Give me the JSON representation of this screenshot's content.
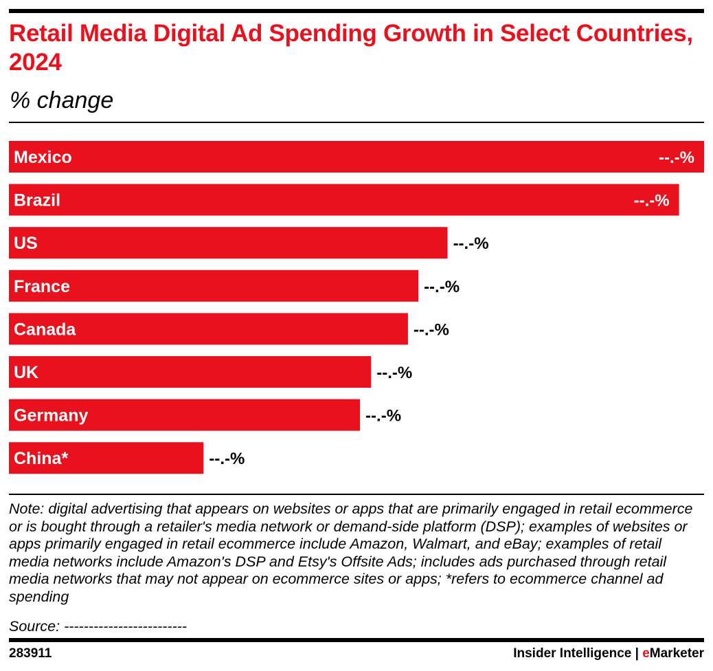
{
  "header": {
    "title": "Retail Media Digital Ad Spending Growth in Select Countries, 2024",
    "subtitle": "% change"
  },
  "chart_data": {
    "type": "bar",
    "orientation": "horizontal",
    "title": "Retail Media Digital Ad Spending Growth in Select Countries, 2024",
    "subtitle": "% change",
    "xlabel": "",
    "ylabel": "",
    "grid": false,
    "categories": [
      "Mexico",
      "Brazil",
      "US",
      "France",
      "Canada",
      "UK",
      "Germany",
      "China*"
    ],
    "value_labels": [
      "--.-%",
      "--.-%",
      "--.-%",
      "--.-%",
      "--.-%",
      "--.-%",
      "--.-%",
      "--.-%"
    ],
    "relative_values": [
      1.0,
      0.964,
      0.631,
      0.589,
      0.574,
      0.521,
      0.505,
      0.28
    ],
    "value_note": "Exact values masked in source; relative_values are bar lengths as a fraction of the longest bar",
    "bar_color": "#e8111d"
  },
  "footer": {
    "note": "Note: digital advertising that appears on websites or apps that are primarily engaged in retail ecommerce or is bought through a retailer's media network or demand-side platform (DSP); examples of websites or apps primarily engaged in retail ecommerce include Amazon, Walmart, and eBay; examples of retail media networks include Amazon's DSP and Etsy's Offsite Ads; includes ads purchased through retail media networks that may not appear on ecommerce sites or apps; *refers to ecommerce channel ad spending",
    "source": "Source: -------------------------",
    "chart_id": "283911",
    "brand_prefix": "Insider Intelligence | ",
    "brand_accent": "e",
    "brand_suffix": "Marketer"
  },
  "colors": {
    "accent": "#e8111d",
    "text": "#000000",
    "background": "#ffffff"
  }
}
